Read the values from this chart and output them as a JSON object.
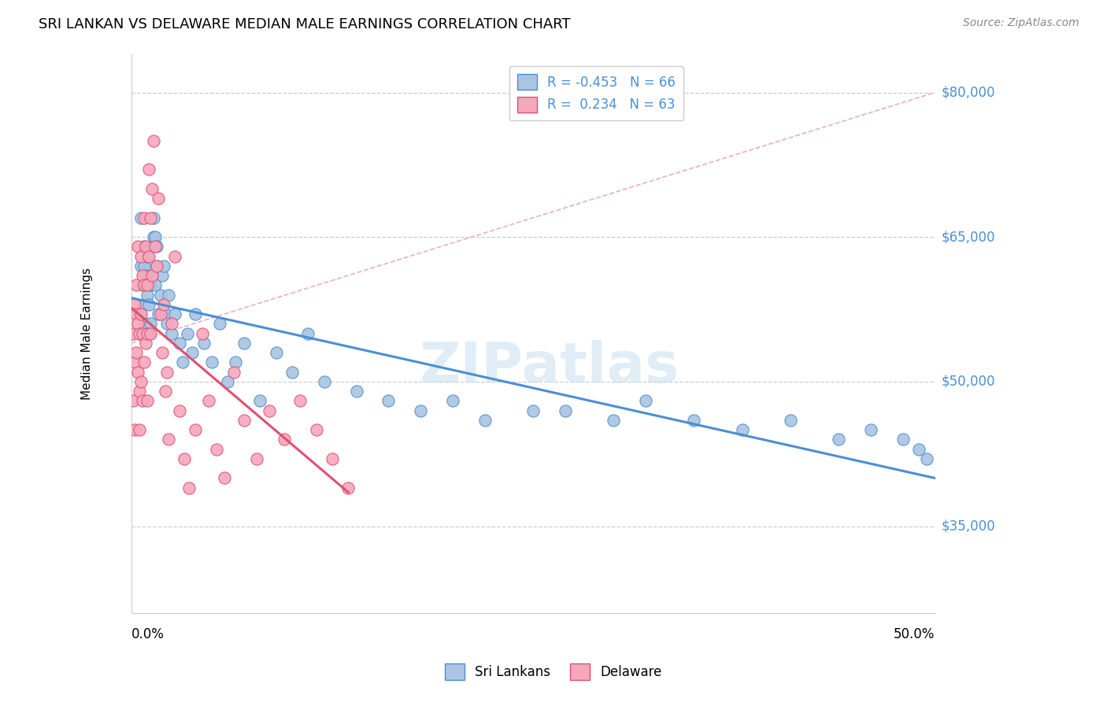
{
  "title": "SRI LANKAN VS DELAWARE MEDIAN MALE EARNINGS CORRELATION CHART",
  "source": "Source: ZipAtlas.com",
  "ylabel": "Median Male Earnings",
  "y_ticks": [
    35000,
    50000,
    65000,
    80000
  ],
  "y_tick_labels": [
    "$35,000",
    "$50,000",
    "$65,000",
    "$80,000"
  ],
  "x_min": 0.0,
  "x_max": 0.5,
  "y_min": 26000,
  "y_max": 84000,
  "sri_lankan_color": "#aac4e2",
  "delaware_color": "#f5a8bc",
  "sri_lankan_line_color": "#4a8fd4",
  "delaware_line_color": "#e05070",
  "legend_sri_label": "R = -0.453   N = 66",
  "legend_del_label": "R =  0.234   N = 63",
  "watermark": "ZIPatlas",
  "sri_lankans_label": "Sri Lankans",
  "delaware_label": "Delaware",
  "sri_x": [
    0.005,
    0.006,
    0.006,
    0.007,
    0.007,
    0.008,
    0.008,
    0.008,
    0.009,
    0.009,
    0.01,
    0.01,
    0.011,
    0.011,
    0.012,
    0.012,
    0.013,
    0.013,
    0.014,
    0.014,
    0.015,
    0.015,
    0.016,
    0.016,
    0.017,
    0.018,
    0.019,
    0.02,
    0.021,
    0.022,
    0.023,
    0.025,
    0.027,
    0.03,
    0.032,
    0.035,
    0.038,
    0.04,
    0.045,
    0.05,
    0.055,
    0.06,
    0.065,
    0.07,
    0.08,
    0.09,
    0.1,
    0.11,
    0.12,
    0.14,
    0.16,
    0.18,
    0.2,
    0.22,
    0.25,
    0.27,
    0.3,
    0.32,
    0.35,
    0.38,
    0.41,
    0.44,
    0.46,
    0.48,
    0.49,
    0.495
  ],
  "sri_y": [
    57000,
    67000,
    62000,
    55000,
    60000,
    64000,
    58000,
    62000,
    56000,
    61000,
    59000,
    63000,
    55000,
    58000,
    56000,
    60000,
    64000,
    61000,
    65000,
    67000,
    65000,
    60000,
    62000,
    64000,
    57000,
    59000,
    61000,
    62000,
    57000,
    56000,
    59000,
    55000,
    57000,
    54000,
    52000,
    55000,
    53000,
    57000,
    54000,
    52000,
    56000,
    50000,
    52000,
    54000,
    48000,
    53000,
    51000,
    55000,
    50000,
    49000,
    48000,
    47000,
    48000,
    46000,
    47000,
    47000,
    46000,
    48000,
    46000,
    45000,
    46000,
    44000,
    45000,
    44000,
    43000,
    42000
  ],
  "del_x": [
    0.001,
    0.001,
    0.002,
    0.002,
    0.002,
    0.003,
    0.003,
    0.003,
    0.004,
    0.004,
    0.004,
    0.005,
    0.005,
    0.005,
    0.006,
    0.006,
    0.006,
    0.007,
    0.007,
    0.007,
    0.008,
    0.008,
    0.008,
    0.009,
    0.009,
    0.01,
    0.01,
    0.01,
    0.011,
    0.011,
    0.012,
    0.012,
    0.013,
    0.013,
    0.014,
    0.015,
    0.016,
    0.017,
    0.018,
    0.019,
    0.02,
    0.021,
    0.022,
    0.023,
    0.025,
    0.027,
    0.03,
    0.033,
    0.036,
    0.04,
    0.044,
    0.048,
    0.053,
    0.058,
    0.064,
    0.07,
    0.078,
    0.086,
    0.095,
    0.105,
    0.115,
    0.125,
    0.135
  ],
  "del_y": [
    55000,
    48000,
    58000,
    52000,
    45000,
    57000,
    60000,
    53000,
    64000,
    56000,
    51000,
    55000,
    49000,
    45000,
    63000,
    57000,
    50000,
    61000,
    55000,
    48000,
    67000,
    60000,
    52000,
    64000,
    54000,
    55000,
    60000,
    48000,
    72000,
    63000,
    67000,
    55000,
    70000,
    61000,
    75000,
    64000,
    62000,
    69000,
    57000,
    53000,
    58000,
    49000,
    51000,
    44000,
    56000,
    63000,
    47000,
    42000,
    39000,
    45000,
    55000,
    48000,
    43000,
    40000,
    51000,
    46000,
    42000,
    47000,
    44000,
    48000,
    45000,
    42000,
    39000
  ]
}
